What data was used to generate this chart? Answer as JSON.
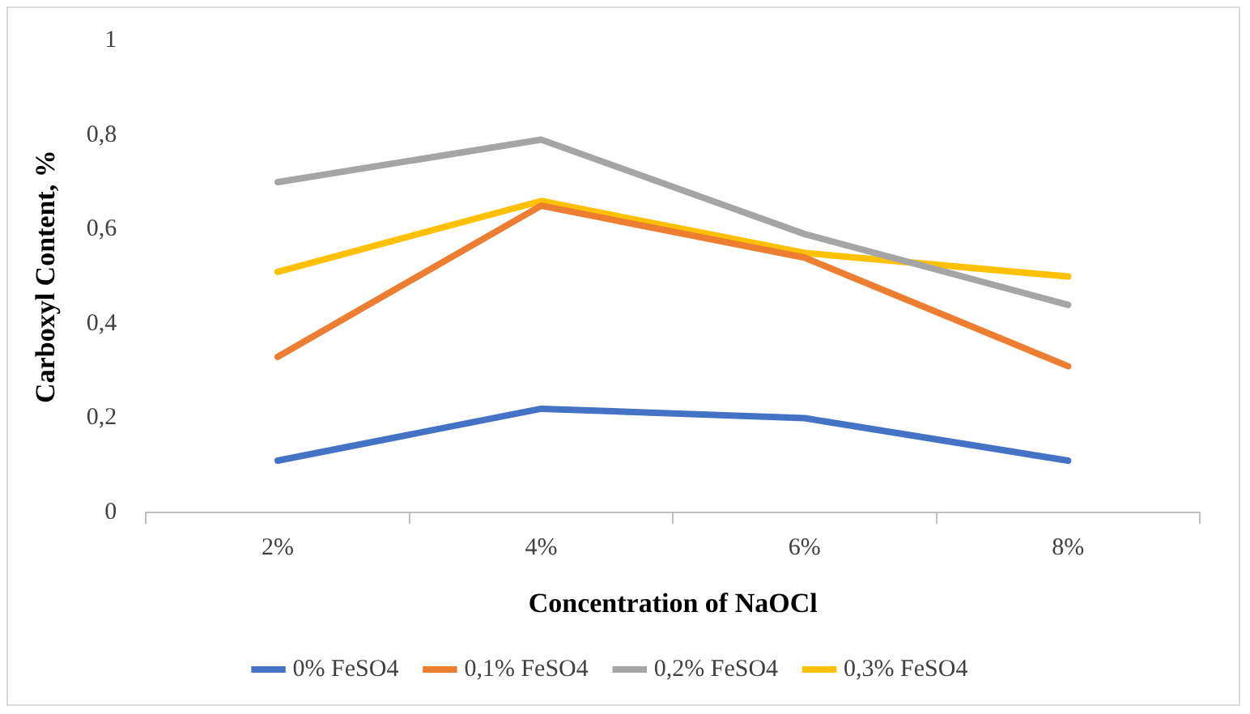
{
  "chart_data": {
    "type": "line",
    "xlabel": "Concentration of NaOCl",
    "ylabel": "Carboxyl Content, %",
    "categories": [
      "2%",
      "4%",
      "6%",
      "8%"
    ],
    "series": [
      {
        "name": "0% FeSO4",
        "color": "#4472c4",
        "values": [
          0.11,
          0.22,
          0.2,
          0.11
        ]
      },
      {
        "name": "0,1% FeSO4",
        "color": "#ed7d31",
        "values": [
          0.33,
          0.65,
          0.54,
          0.31
        ]
      },
      {
        "name": "0,2% FeSO4",
        "color": "#a5a5a5",
        "values": [
          0.7,
          0.79,
          0.59,
          0.44
        ]
      },
      {
        "name": "0,3% FeSO4",
        "color": "#ffc000",
        "values": [
          0.51,
          0.66,
          0.55,
          0.5
        ]
      }
    ],
    "ylim": [
      0,
      1
    ],
    "yticks": [
      0,
      {
        "value": 0.2,
        "label": "0,2"
      },
      {
        "value": 0.4,
        "label": "0,4"
      },
      {
        "value": 0.6,
        "label": "0,6"
      },
      {
        "value": 0.8,
        "label": "0,8"
      },
      1
    ],
    "grid": false,
    "legend": "bottom",
    "marker": "none",
    "line_style": "solid"
  }
}
